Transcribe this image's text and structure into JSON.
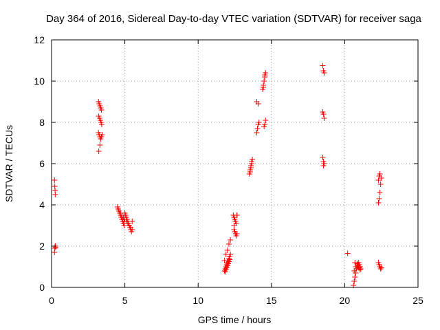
{
  "chart_data": {
    "type": "scatter",
    "title": "Day 364 of 2016, Sidereal Day-to-day VTEC variation (SDTVAR) for receiver saga",
    "xlabel": "GPS time / hours",
    "ylabel": "SDTVAR / TECUs",
    "xlim": [
      0,
      25
    ],
    "ylim": [
      0,
      12
    ],
    "xticks": [
      0,
      5,
      10,
      15,
      20,
      25
    ],
    "yticks": [
      0,
      2,
      4,
      6,
      8,
      10,
      12
    ],
    "xtick_labels": [
      "0",
      "5",
      "10",
      "15",
      "20",
      "25"
    ],
    "ytick_labels": [
      "0",
      "2",
      "4",
      "6",
      "8",
      "10",
      "12"
    ],
    "grid": true,
    "marker": "+",
    "color": "#ff0000",
    "x": [
      0.2,
      0.22,
      0.24,
      0.25,
      0.2,
      0.22,
      0.24,
      0.26,
      0.28,
      3.2,
      3.25,
      3.3,
      3.35,
      3.4,
      3.22,
      3.28,
      3.33,
      3.38,
      3.42,
      3.2,
      3.25,
      3.3,
      3.35,
      3.4,
      3.45,
      3.22,
      3.3,
      4.5,
      4.55,
      4.6,
      4.65,
      4.7,
      4.75,
      4.8,
      4.85,
      4.9,
      4.95,
      5.0,
      5.05,
      5.1,
      5.15,
      5.2,
      5.25,
      5.3,
      5.35,
      5.4,
      5.45,
      5.5,
      4.6,
      4.7,
      4.8,
      4.9,
      5.0,
      5.1,
      5.2,
      5.3,
      5.4,
      5.5,
      4.75,
      4.85,
      4.95,
      11.8,
      11.85,
      11.9,
      11.95,
      12.0,
      12.05,
      12.1,
      12.15,
      12.2,
      11.85,
      11.9,
      11.95,
      12.0,
      12.05,
      12.1,
      12.15,
      11.8,
      11.9,
      12.0,
      12.1,
      12.2,
      12.4,
      12.45,
      12.5,
      12.55,
      12.6,
      12.65,
      12.45,
      12.5,
      12.55,
      12.6,
      12.65,
      12.45,
      12.55,
      12.65,
      13.5,
      13.55,
      13.6,
      13.65,
      13.7,
      13.55,
      13.6,
      13.65,
      14.0,
      14.05,
      14.1,
      14.15,
      14.0,
      14.1,
      14.4,
      14.45,
      14.5,
      14.55,
      14.6,
      14.5,
      14.55,
      14.6,
      14.45,
      14.55,
      18.5,
      18.55,
      18.6,
      18.5,
      18.55,
      18.6,
      18.5,
      18.55,
      18.6,
      18.55,
      20.2,
      20.6,
      20.65,
      20.7,
      20.75,
      20.8,
      20.85,
      20.9,
      20.95,
      21.0,
      21.05,
      21.1,
      20.65,
      20.75,
      20.85,
      20.95,
      21.05,
      20.7,
      20.9,
      21.0,
      22.3,
      22.35,
      22.4,
      22.45,
      22.5,
      22.3,
      22.35,
      22.4,
      22.3,
      22.35,
      22.4,
      22.45,
      22.5
    ],
    "y": [
      5.2,
      4.9,
      4.7,
      4.5,
      1.7,
      1.9,
      2.0,
      2.0,
      1.95,
      9.0,
      8.9,
      8.8,
      8.7,
      8.6,
      8.3,
      8.2,
      8.1,
      8.0,
      7.9,
      7.5,
      7.4,
      7.3,
      7.2,
      7.3,
      7.4,
      6.6,
      6.9,
      3.9,
      3.8,
      3.7,
      3.6,
      3.5,
      3.4,
      3.3,
      3.2,
      3.1,
      3.0,
      3.6,
      3.5,
      3.4,
      3.3,
      3.2,
      3.1,
      3.0,
      2.9,
      2.8,
      2.7,
      3.2,
      3.7,
      3.6,
      3.5,
      3.4,
      3.3,
      3.2,
      3.1,
      3.0,
      2.9,
      2.8,
      3.4,
      3.3,
      3.2,
      0.8,
      0.9,
      1.0,
      1.1,
      1.2,
      1.3,
      1.4,
      1.5,
      1.6,
      0.75,
      0.85,
      0.95,
      1.05,
      1.15,
      1.25,
      1.35,
      1.3,
      1.6,
      1.8,
      2.1,
      2.3,
      3.5,
      3.4,
      3.3,
      3.2,
      3.1,
      3.5,
      2.8,
      2.7,
      2.6,
      2.5,
      2.6,
      3.0,
      3.2,
      3.5,
      5.5,
      5.7,
      5.9,
      6.1,
      6.2,
      5.6,
      5.8,
      6.0,
      7.5,
      7.7,
      7.9,
      8.0,
      9.0,
      8.9,
      9.6,
      9.8,
      10.0,
      10.2,
      10.4,
      7.8,
      7.9,
      8.1,
      9.7,
      10.3,
      10.75,
      10.5,
      10.4,
      8.5,
      8.4,
      8.2,
      6.3,
      6.1,
      6.0,
      5.9,
      1.65,
      0.1,
      0.3,
      0.5,
      0.7,
      0.9,
      1.0,
      1.1,
      1.2,
      1.1,
      1.0,
      0.9,
      0.8,
      1.0,
      1.15,
      0.95,
      0.85,
      1.2,
      1.05,
      0.95,
      4.1,
      4.3,
      4.6,
      5.0,
      5.3,
      5.2,
      5.4,
      5.5,
      1.2,
      1.1,
      1.0,
      0.9,
      0.95
    ]
  }
}
